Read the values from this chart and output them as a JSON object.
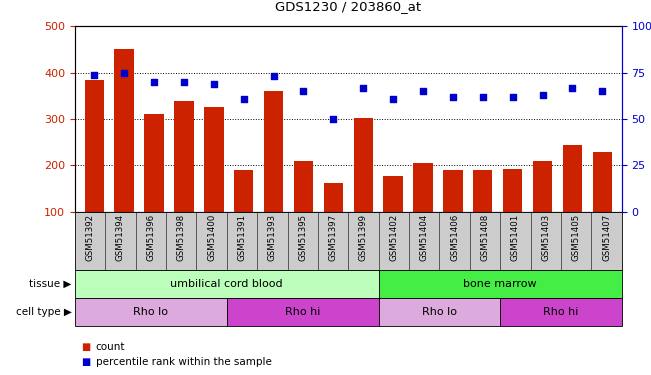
{
  "title": "GDS1230 / 203860_at",
  "samples": [
    "GSM51392",
    "GSM51394",
    "GSM51396",
    "GSM51398",
    "GSM51400",
    "GSM51391",
    "GSM51393",
    "GSM51395",
    "GSM51397",
    "GSM51399",
    "GSM51402",
    "GSM51404",
    "GSM51406",
    "GSM51408",
    "GSM51401",
    "GSM51403",
    "GSM51405",
    "GSM51407"
  ],
  "counts": [
    385,
    450,
    310,
    340,
    325,
    190,
    360,
    210,
    163,
    302,
    178,
    205,
    190,
    190,
    193,
    210,
    245,
    230
  ],
  "percentiles": [
    74,
    75,
    70,
    70,
    69,
    61,
    73,
    65,
    50,
    67,
    61,
    65,
    62,
    62,
    62,
    63,
    67,
    65
  ],
  "ylim_left": [
    100,
    500
  ],
  "ylim_right": [
    0,
    100
  ],
  "yticks_left": [
    100,
    200,
    300,
    400,
    500
  ],
  "yticks_right": [
    0,
    25,
    50,
    75,
    100
  ],
  "bar_color": "#cc2200",
  "dot_color": "#0000cc",
  "tissue_groups": [
    {
      "label": "umbilical cord blood",
      "start": 0,
      "end": 10,
      "color": "#bbffbb"
    },
    {
      "label": "bone marrow",
      "start": 10,
      "end": 18,
      "color": "#44ee44"
    }
  ],
  "cell_type_groups": [
    {
      "label": "Rho lo",
      "start": 0,
      "end": 5,
      "color": "#ddaadd"
    },
    {
      "label": "Rho hi",
      "start": 5,
      "end": 10,
      "color": "#cc44cc"
    },
    {
      "label": "Rho lo",
      "start": 10,
      "end": 14,
      "color": "#ddaadd"
    },
    {
      "label": "Rho hi",
      "start": 14,
      "end": 18,
      "color": "#cc44cc"
    }
  ],
  "legend_count_label": "count",
  "legend_pct_label": "percentile rank within the sample",
  "left_axis_color": "#cc2200",
  "right_axis_color": "#0000cc",
  "bg_color": "#ffffff",
  "axis_bg_color": "#cccccc"
}
